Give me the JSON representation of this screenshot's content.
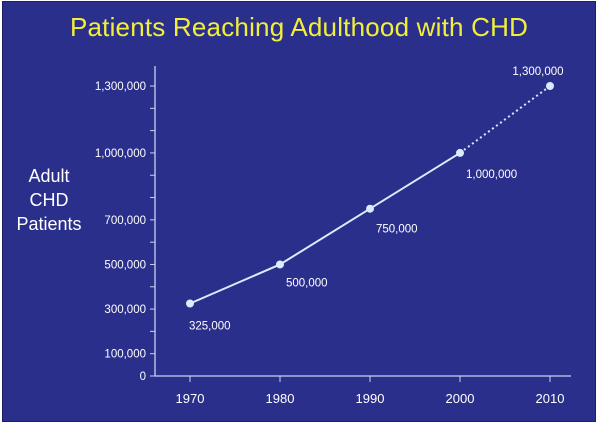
{
  "chart_data": {
    "type": "line",
    "title": "Patients Reaching Adulthood with CHD",
    "ylabel_lines": [
      "Adult",
      "CHD",
      "Patients"
    ],
    "xlabel": "",
    "x": [
      1970,
      1980,
      1990,
      2000,
      2010
    ],
    "x_tick_labels": [
      "1970",
      "1980",
      "1990",
      "2000",
      "2010"
    ],
    "y_tick_values": [
      0,
      100000,
      300000,
      500000,
      700000,
      1000000,
      1300000
    ],
    "y_tick_labels": [
      "0",
      "100,000",
      "300,000",
      "500,000",
      "700,000",
      "1,000,000",
      "1,300,000"
    ],
    "ylim": [
      0,
      1300000
    ],
    "series": [
      {
        "values": [
          325000,
          500000,
          750000,
          1000000,
          1300000
        ],
        "data_labels": [
          "325,000",
          "500,000",
          "750,000",
          "1,000,000",
          "1,300,000"
        ],
        "dashed_from_index": 3
      }
    ],
    "grid": false,
    "colors": {
      "background": "#2b2f8c",
      "title": "#f2ef3a",
      "line": "#d8ecfb",
      "axis": "#c9d2f0",
      "text": "#ffffff"
    }
  }
}
